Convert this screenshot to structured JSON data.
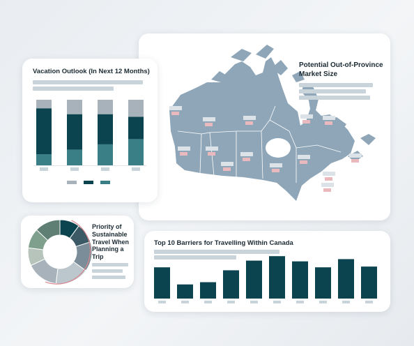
{
  "colors": {
    "dark": "#0b434e",
    "teal": "#3b7f86",
    "grey": "#a7b2ba",
    "map": "#8ea6b8",
    "placeholder": "#c9d3da",
    "pinkLabel": "#e9b9bd"
  },
  "vacation_card": {
    "title": "Vacation Outlook (In Next 12 Months)",
    "chart_data": {
      "type": "bar",
      "stacked": true,
      "categories": [
        "",
        "",
        "",
        ""
      ],
      "series": [
        {
          "color": "#3b7f86",
          "values": [
            17,
            24,
            32,
            40
          ]
        },
        {
          "color": "#0b434e",
          "values": [
            70,
            54,
            46,
            34
          ]
        },
        {
          "color": "#a7b2ba",
          "values": [
            13,
            22,
            22,
            26
          ]
        }
      ],
      "ylim": [
        0,
        100
      ]
    }
  },
  "map_card": {
    "title_line1": "Potential Out-of-Province",
    "title_line2": "Market Size"
  },
  "donut_card": {
    "title_line1": "Priority of",
    "title_line2": "Sustainable",
    "title_line3": "Travel When",
    "title_line4": "Planning a",
    "title_line5": "Trip",
    "chart_data": {
      "type": "pie",
      "donut": true,
      "values": [
        10,
        10,
        15,
        17,
        16,
        9,
        10,
        13
      ],
      "colors": [
        "#0b434e",
        "#3b5a66",
        "#7b8d98",
        "#bcc6cd",
        "#a7b2ba",
        "#b7c4bc",
        "#7fa08d",
        "#5f7f75"
      ]
    }
  },
  "barriers_card": {
    "title": "Top 10 Barriers for Travelling Within Canada",
    "chart_data": {
      "type": "bar",
      "categories": [
        "",
        "",
        "",
        "",
        "",
        "",
        "",
        "",
        "",
        ""
      ],
      "values": [
        42,
        19,
        22,
        38,
        51,
        57,
        50,
        42,
        53,
        43
      ],
      "ylim": [
        0,
        60
      ]
    }
  }
}
